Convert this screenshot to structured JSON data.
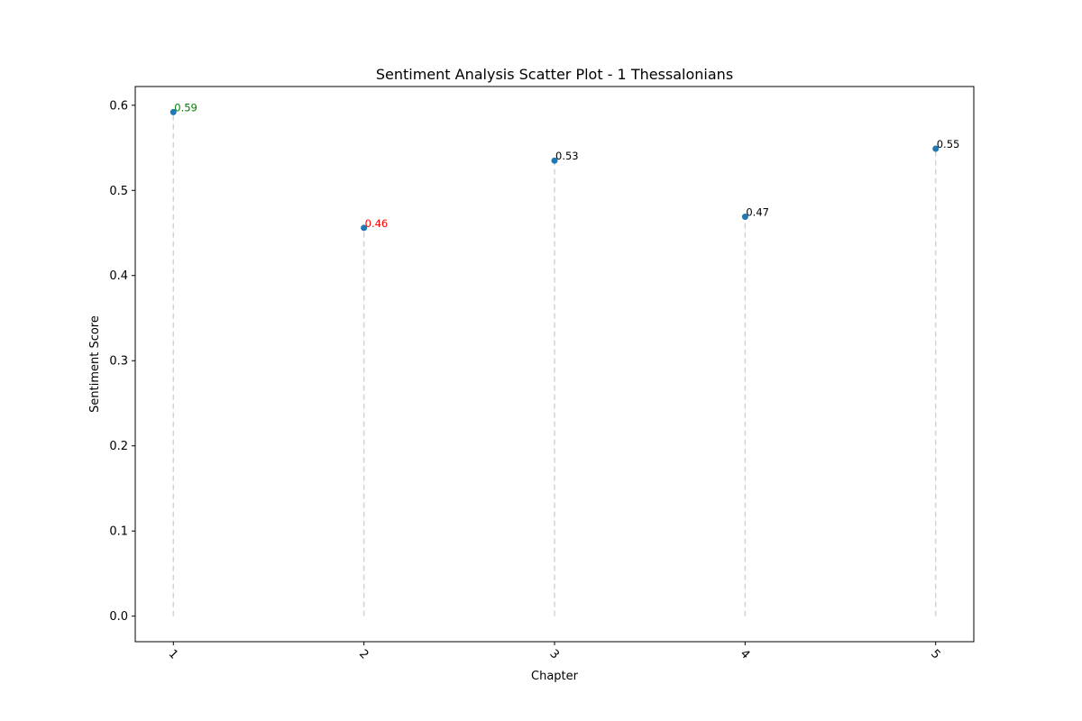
{
  "chart_data": {
    "type": "scatter",
    "title": "Sentiment Analysis Scatter Plot - 1 Thessalonians",
    "xlabel": "Chapter",
    "ylabel": "Sentiment Score",
    "x": [
      1,
      2,
      3,
      4,
      5
    ],
    "x_tick_labels": [
      "1",
      "2",
      "3",
      "4",
      "5"
    ],
    "y": [
      0.592,
      0.456,
      0.535,
      0.469,
      0.549
    ],
    "point_labels": [
      "0.59",
      "0.46",
      "0.53",
      "0.47",
      "0.55"
    ],
    "label_colors": [
      "#008000",
      "#ff0000",
      "#000000",
      "#000000",
      "#000000"
    ],
    "marker_color": "#1f77b4",
    "stem_color": "#d3d3d3",
    "stem_style": "dashed",
    "xlim": [
      0.8,
      5.2
    ],
    "ylim": [
      -0.03,
      0.622
    ],
    "y_ticks": [
      0.0,
      0.1,
      0.2,
      0.3,
      0.4,
      0.5,
      0.6
    ],
    "y_tick_labels": [
      "0.0",
      "0.1",
      "0.2",
      "0.3",
      "0.4",
      "0.5",
      "0.6"
    ],
    "x_tick_rotation_deg": 45,
    "grid": false,
    "legend": false
  }
}
